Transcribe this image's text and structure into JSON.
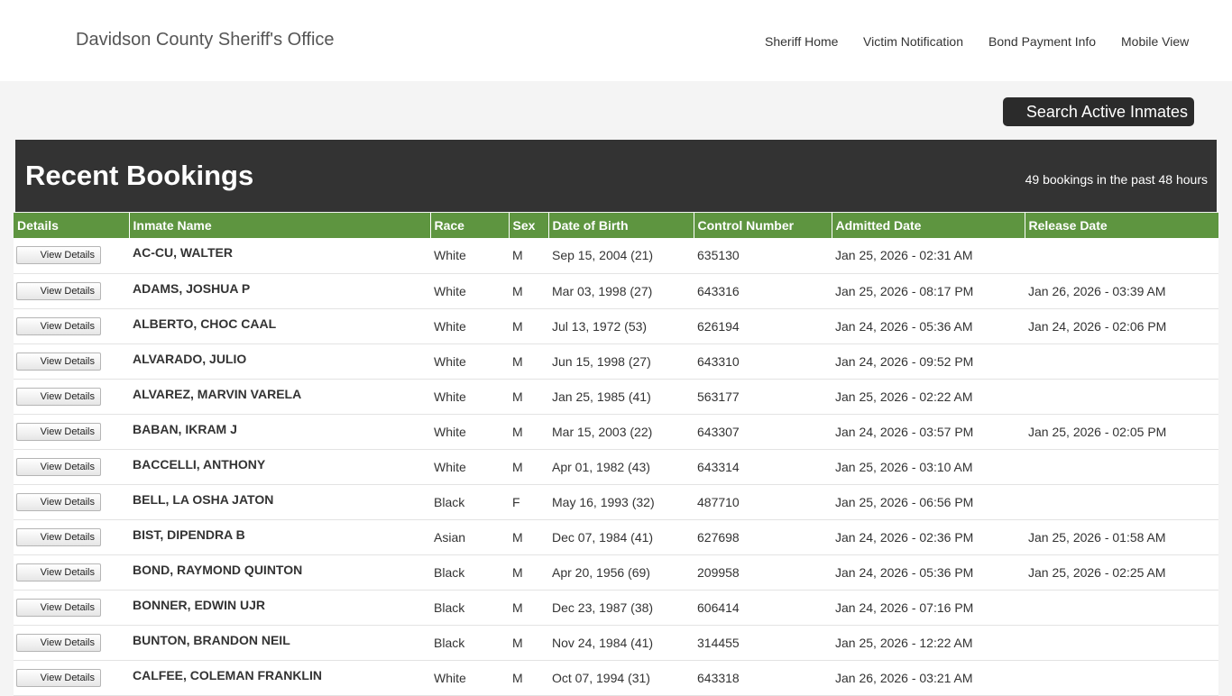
{
  "header": {
    "brand": "Davidson County Sheriff's Office",
    "nav": [
      "Sheriff Home",
      "Victim Notification",
      "Bond Payment Info",
      "Mobile View"
    ]
  },
  "search_button": "Search Active Inmates",
  "banner": {
    "title": "Recent Bookings",
    "count": "49 bookings in the past 48 hours"
  },
  "table": {
    "columns": [
      "Details",
      "Inmate Name",
      "Race",
      "Sex",
      "Date of Birth",
      "Control Number",
      "Admitted Date",
      "Release Date"
    ],
    "button_label": "View Details",
    "rows": [
      {
        "name": "AC-CU, WALTER",
        "race": "White",
        "sex": "M",
        "dob": "Sep 15, 2004 (21)",
        "control": "635130",
        "admitted": "Jan 25, 2026 - 02:31 AM",
        "released": ""
      },
      {
        "name": "ADAMS, JOSHUA  P",
        "race": "White",
        "sex": "M",
        "dob": "Mar 03, 1998 (27)",
        "control": "643316",
        "admitted": "Jan 25, 2026 - 08:17 PM",
        "released": "Jan 26, 2026 - 03:39 AM"
      },
      {
        "name": "ALBERTO, CHOC  CAAL",
        "race": "White",
        "sex": "M",
        "dob": "Jul 13, 1972 (53)",
        "control": "626194",
        "admitted": "Jan 24, 2026 - 05:36 AM",
        "released": "Jan 24, 2026 - 02:06 PM"
      },
      {
        "name": "ALVARADO, JULIO",
        "race": "White",
        "sex": "M",
        "dob": "Jun 15, 1998 (27)",
        "control": "643310",
        "admitted": "Jan 24, 2026 - 09:52 PM",
        "released": ""
      },
      {
        "name": "ALVAREZ, MARVIN  VARELA",
        "race": "White",
        "sex": "M",
        "dob": "Jan 25, 1985 (41)",
        "control": "563177",
        "admitted": "Jan 25, 2026 - 02:22 AM",
        "released": ""
      },
      {
        "name": "BABAN, IKRAM  J",
        "race": "White",
        "sex": "M",
        "dob": "Mar 15, 2003 (22)",
        "control": "643307",
        "admitted": "Jan 24, 2026 - 03:57 PM",
        "released": "Jan 25, 2026 - 02:05 PM"
      },
      {
        "name": "BACCELLI, ANTHONY",
        "race": "White",
        "sex": "M",
        "dob": "Apr 01, 1982 (43)",
        "control": "643314",
        "admitted": "Jan 25, 2026 - 03:10 AM",
        "released": ""
      },
      {
        "name": "BELL, LA OSHA  JATON",
        "race": "Black",
        "sex": "F",
        "dob": "May 16, 1993 (32)",
        "control": "487710",
        "admitted": "Jan 25, 2026 - 06:56 PM",
        "released": ""
      },
      {
        "name": "BIST, DIPENDRA  B",
        "race": "Asian",
        "sex": "M",
        "dob": "Dec 07, 1984 (41)",
        "control": "627698",
        "admitted": "Jan 24, 2026 - 02:36 PM",
        "released": "Jan 25, 2026 - 01:58 AM"
      },
      {
        "name": "BOND, RAYMOND  QUINTON",
        "race": "Black",
        "sex": "M",
        "dob": "Apr 20, 1956 (69)",
        "control": "209958",
        "admitted": "Jan 24, 2026 - 05:36 PM",
        "released": "Jan 25, 2026 - 02:25 AM"
      },
      {
        "name": "BONNER, EDWIN  UJR",
        "race": "Black",
        "sex": "M",
        "dob": "Dec 23, 1987 (38)",
        "control": "606414",
        "admitted": "Jan 24, 2026 - 07:16 PM",
        "released": ""
      },
      {
        "name": "BUNTON, BRANDON  NEIL",
        "race": "Black",
        "sex": "M",
        "dob": "Nov 24, 1984 (41)",
        "control": "314455",
        "admitted": "Jan 25, 2026 - 12:22 AM",
        "released": ""
      },
      {
        "name": "CALFEE, COLEMAN  FRANKLIN",
        "race": "White",
        "sex": "M",
        "dob": "Oct 07, 1994 (31)",
        "control": "643318",
        "admitted": "Jan 26, 2026 - 03:21 AM",
        "released": ""
      }
    ]
  }
}
